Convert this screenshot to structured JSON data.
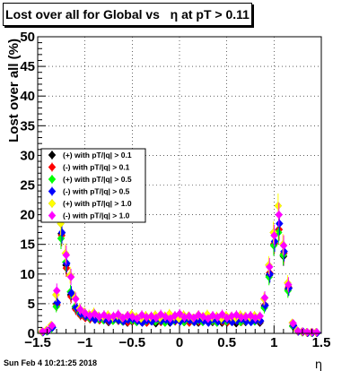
{
  "chart_data": {
    "type": "scatter",
    "title": "Lost over all for Global vs   η at pT > 0.11",
    "xlabel": "η",
    "ylabel": "Lost over all (%)",
    "xlim": [
      -1.5,
      1.5
    ],
    "ylim": [
      0,
      50
    ],
    "x_ticks": [
      "−1.5",
      "−1",
      "−0.5",
      "0",
      "0.5",
      "1",
      "1.5"
    ],
    "y_ticks": [
      "0",
      "5",
      "10",
      "15",
      "20",
      "25",
      "30",
      "35",
      "40",
      "45",
      "50"
    ],
    "grid": true,
    "legend_position": "left",
    "x": [
      -1.45,
      -1.4,
      -1.35,
      -1.3,
      -1.25,
      -1.2,
      -1.15,
      -1.1,
      -1.05,
      -1.0,
      -0.95,
      -0.9,
      -0.85,
      -0.8,
      -0.75,
      -0.7,
      -0.65,
      -0.6,
      -0.55,
      -0.5,
      -0.45,
      -0.4,
      -0.35,
      -0.3,
      -0.25,
      -0.2,
      -0.15,
      -0.1,
      -0.05,
      0.0,
      0.05,
      0.1,
      0.15,
      0.2,
      0.25,
      0.3,
      0.35,
      0.4,
      0.45,
      0.5,
      0.55,
      0.6,
      0.65,
      0.7,
      0.75,
      0.8,
      0.85,
      0.9,
      0.95,
      1.0,
      1.05,
      1.1,
      1.15,
      1.2,
      1.25,
      1.3,
      1.35,
      1.4,
      1.45
    ],
    "series": [
      {
        "name": "(+) with pT/|q| > 0.1",
        "color": "#000000",
        "values": [
          0.2,
          0.5,
          0.9,
          5.0,
          16.8,
          11.5,
          6.5,
          4.2,
          3.2,
          2.8,
          2.5,
          2.4,
          2.6,
          2.3,
          1.9,
          2.2,
          2.4,
          2.1,
          1.8,
          2.0,
          2.2,
          1.9,
          2.4,
          2.1,
          1.7,
          2.3,
          2.1,
          1.8,
          2.5,
          2.2,
          1.9,
          2.1,
          2.3,
          1.8,
          2.0,
          2.2,
          1.9,
          2.4,
          1.8,
          2.1,
          2.0,
          1.7,
          2.3,
          1.9,
          2.2,
          2.4,
          1.8,
          4.6,
          9.8,
          15.0,
          17.5,
          13.0,
          7.5,
          1.3,
          0.4,
          0.2,
          0.1,
          0.1,
          0.1
        ]
      },
      {
        "name": "(-) with pT/|q| > 0.1",
        "color": "#ff0000",
        "values": [
          0.3,
          0.4,
          1.1,
          4.8,
          16.5,
          11.0,
          6.2,
          4.0,
          3.0,
          2.6,
          2.4,
          2.7,
          2.2,
          2.5,
          2.0,
          2.3,
          2.1,
          2.4,
          1.9,
          2.1,
          2.3,
          2.0,
          1.8,
          2.2,
          2.4,
          1.9,
          2.1,
          2.3,
          2.0,
          2.4,
          2.1,
          1.8,
          2.2,
          2.0,
          2.3,
          1.9,
          2.1,
          2.2,
          2.0,
          1.8,
          2.4,
          2.1,
          1.9,
          2.2,
          2.0,
          2.3,
          2.0,
          4.8,
          10.2,
          15.2,
          17.5,
          13.5,
          7.8,
          1.4,
          0.3,
          0.2,
          0.1,
          0.2,
          0.1
        ]
      },
      {
        "name": "(+) with pT/|q| > 0.5",
        "color": "#00ff00",
        "values": [
          0.2,
          0.3,
          0.8,
          4.5,
          16.0,
          12.0,
          7.0,
          4.5,
          3.4,
          3.0,
          2.6,
          2.8,
          2.4,
          2.2,
          2.6,
          2.1,
          2.3,
          2.0,
          2.5,
          2.2,
          1.9,
          2.4,
          2.1,
          2.6,
          2.0,
          2.2,
          1.8,
          2.4,
          2.1,
          2.3,
          1.9,
          2.5,
          2.0,
          2.2,
          1.9,
          2.4,
          2.1,
          1.8,
          2.3,
          2.0,
          2.2,
          2.4,
          1.9,
          2.1,
          2.3,
          2.0,
          2.2,
          4.3,
          9.5,
          14.8,
          17.0,
          13.2,
          7.2,
          1.2,
          0.4,
          0.2,
          0.2,
          0.1,
          0.2
        ]
      },
      {
        "name": "(-) with pT/|q| > 0.5",
        "color": "#0000ff",
        "values": [
          0.2,
          0.4,
          1.0,
          5.2,
          17.0,
          11.8,
          6.8,
          4.4,
          3.3,
          2.9,
          2.7,
          2.3,
          2.6,
          2.4,
          2.1,
          2.5,
          2.2,
          2.0,
          2.3,
          2.4,
          2.1,
          1.8,
          2.2,
          2.0,
          2.5,
          2.1,
          2.3,
          1.9,
          2.2,
          2.0,
          2.4,
          2.2,
          1.9,
          2.3,
          2.1,
          1.8,
          2.4,
          2.0,
          2.2,
          2.3,
          1.9,
          2.1,
          2.4,
          2.0,
          1.9,
          2.2,
          2.1,
          4.7,
          10.0,
          15.5,
          18.5,
          13.8,
          7.6,
          1.3,
          0.3,
          0.3,
          0.1,
          0.1,
          0.1
        ]
      },
      {
        "name": "(+) with pT/|q| > 1.0",
        "color": "#ffff00",
        "values": [
          0.3,
          0.6,
          1.4,
          6.5,
          18.5,
          13.5,
          9.8,
          6.0,
          4.2,
          3.6,
          3.2,
          3.5,
          2.9,
          2.8,
          3.1,
          2.7,
          3.0,
          2.6,
          2.9,
          3.2,
          2.8,
          2.5,
          3.0,
          2.7,
          3.1,
          2.6,
          2.9,
          3.3,
          2.8,
          2.5,
          3.1,
          2.9,
          2.6,
          3.0,
          2.8,
          3.2,
          2.7,
          2.9,
          2.5,
          3.0,
          2.8,
          2.6,
          3.1,
          2.9,
          2.7,
          3.0,
          2.8,
          5.8,
          11.5,
          17.0,
          21.5,
          15.0,
          8.5,
          1.8,
          0.5,
          0.3,
          0.2,
          0.2,
          0.2
        ]
      },
      {
        "name": "(-) with pT/|q| > 1.0",
        "color": "#ff00ff",
        "values": [
          0.3,
          0.5,
          1.3,
          7.2,
          21.5,
          13.2,
          9.5,
          5.8,
          4.0,
          3.4,
          3.0,
          3.3,
          2.8,
          3.1,
          2.7,
          2.9,
          3.2,
          2.6,
          3.0,
          2.8,
          2.5,
          3.1,
          2.7,
          2.9,
          2.6,
          3.2,
          2.8,
          2.5,
          3.0,
          3.3,
          2.7,
          2.9,
          2.6,
          3.1,
          2.8,
          2.5,
          3.0,
          2.7,
          3.2,
          2.6,
          2.9,
          3.1,
          2.7,
          2.8,
          3.0,
          2.6,
          2.9,
          6.0,
          11.2,
          16.5,
          20.0,
          14.8,
          8.2,
          1.7,
          0.4,
          0.3,
          0.2,
          0.2,
          0.2
        ]
      }
    ]
  },
  "stamp": "Sun Feb  4 10:21:25 2018",
  "colors": {
    "axis": "#000000",
    "background": "#ffffff",
    "grid": "#000000"
  }
}
